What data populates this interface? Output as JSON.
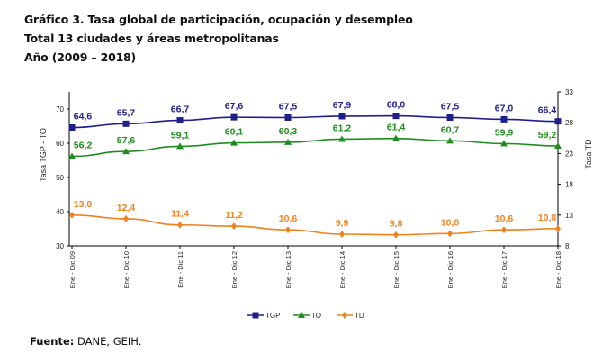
{
  "header": {
    "line1": "Gráfico 3. Tasa global de participación, ocupación y desempleo",
    "line2": "Total 13 ciudades y áreas metropolitanas",
    "line3": "Año (2009 – 2018)"
  },
  "footer": {
    "source_label": "Fuente:",
    "source_text": " DANE, GEIH."
  },
  "chart_data": {
    "type": "line",
    "title": "Gráfico 3. Tasa global de participación, ocupación y desempleo — Total 13 ciudades y áreas metropolitanas — Año (2009 – 2018)",
    "categories": [
      "Ene - Dic 09",
      "Ene - Dic 10",
      "Ene - Dic 11",
      "Ene - Dic 12",
      "Ene - Dic 13",
      "Ene - Dic 14",
      "Ene - Dic 15",
      "Ene - Dic 16",
      "Ene - Dic 17",
      "Ene - Dic 18"
    ],
    "ylabel": "Tasa TGP  -  TO",
    "y2label": "Tasa  TD",
    "ylim": [
      30,
      75
    ],
    "yticks": [
      30,
      40,
      50,
      60,
      70
    ],
    "y2lim": [
      8,
      33
    ],
    "y2ticks": [
      8,
      13,
      18,
      23,
      28,
      33
    ],
    "grid": false,
    "legend_position": "bottom-center",
    "series": [
      {
        "name": "TGP",
        "axis": "left",
        "color": "#1f1f8c",
        "marker": "square",
        "values": [
          64.6,
          65.7,
          66.7,
          67.6,
          67.5,
          67.9,
          68.0,
          67.5,
          67.0,
          66.4
        ],
        "labels": [
          "64,6",
          "65,7",
          "66,7",
          "67,6",
          "67,5",
          "67,9",
          "68,0",
          "67,5",
          "67,0",
          "66,4"
        ]
      },
      {
        "name": "TO",
        "axis": "left",
        "color": "#1e8c1e",
        "marker": "triangle",
        "values": [
          56.2,
          57.6,
          59.1,
          60.1,
          60.3,
          61.2,
          61.4,
          60.7,
          59.9,
          59.2
        ],
        "labels": [
          "56,2",
          "57,6",
          "59,1",
          "60,1",
          "60,3",
          "61,2",
          "61,4",
          "60,7",
          "59,9",
          "59,2"
        ]
      },
      {
        "name": "TD",
        "axis": "right",
        "color": "#f0821e",
        "marker": "diamond",
        "values": [
          13.0,
          12.4,
          11.4,
          11.2,
          10.6,
          9.9,
          9.8,
          10.0,
          10.6,
          10.8
        ],
        "labels": [
          "13,0",
          "12,4",
          "11,4",
          "11,2",
          "10,6",
          "9,9",
          "9,8",
          "10,0",
          "10,6",
          "10,8"
        ]
      }
    ]
  }
}
